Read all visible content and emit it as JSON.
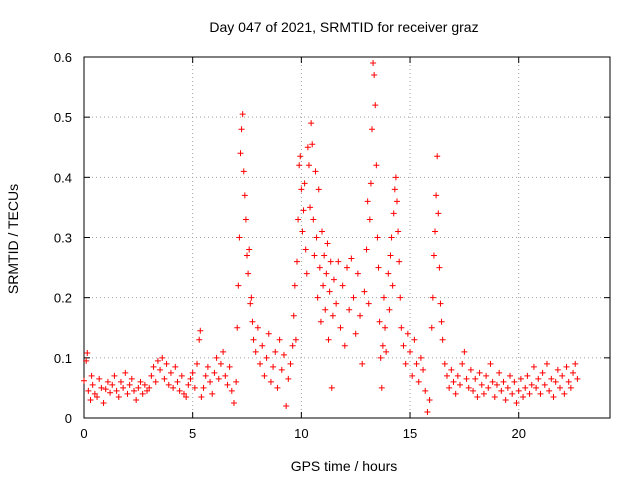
{
  "chart_data": {
    "type": "scatter",
    "title": "Day 047 of 2021, SRMTID for receiver graz",
    "xlabel": "GPS time / hours",
    "ylabel": "SRMTID / TECUs",
    "xlim": [
      0,
      24.2
    ],
    "ylim": [
      0,
      0.6
    ],
    "xticks": [
      0,
      5,
      10,
      15,
      20
    ],
    "yticks": [
      0,
      0.1,
      0.2,
      0.3,
      0.4,
      0.5,
      0.6
    ],
    "grid": true,
    "marker": "plus",
    "series": [
      {
        "name": "SRMTID",
        "color": "#ff0000",
        "points": [
          [
            0.0,
            0.062
          ],
          [
            0.1,
            0.095
          ],
          [
            0.15,
            0.108
          ],
          [
            0.2,
            0.045
          ],
          [
            0.3,
            0.03
          ],
          [
            0.35,
            0.07
          ],
          [
            0.4,
            0.055
          ],
          [
            0.5,
            0.04
          ],
          [
            0.6,
            0.035
          ],
          [
            0.7,
            0.065
          ],
          [
            0.8,
            0.05
          ],
          [
            0.9,
            0.025
          ],
          [
            1.0,
            0.048
          ],
          [
            1.1,
            0.06
          ],
          [
            1.2,
            0.042
          ],
          [
            1.3,
            0.055
          ],
          [
            1.4,
            0.07
          ],
          [
            1.5,
            0.045
          ],
          [
            1.6,
            0.035
          ],
          [
            1.7,
            0.06
          ],
          [
            1.8,
            0.05
          ],
          [
            1.9,
            0.075
          ],
          [
            2.0,
            0.04
          ],
          [
            2.1,
            0.055
          ],
          [
            2.2,
            0.065
          ],
          [
            2.3,
            0.045
          ],
          [
            2.4,
            0.03
          ],
          [
            2.5,
            0.05
          ],
          [
            2.6,
            0.06
          ],
          [
            2.7,
            0.04
          ],
          [
            2.8,
            0.055
          ],
          [
            2.9,
            0.045
          ],
          [
            3.0,
            0.05
          ],
          [
            3.1,
            0.07
          ],
          [
            3.2,
            0.085
          ],
          [
            3.3,
            0.06
          ],
          [
            3.4,
            0.095
          ],
          [
            3.5,
            0.08
          ],
          [
            3.6,
            0.1
          ],
          [
            3.7,
            0.065
          ],
          [
            3.8,
            0.09
          ],
          [
            3.9,
            0.055
          ],
          [
            4.0,
            0.075
          ],
          [
            4.1,
            0.05
          ],
          [
            4.2,
            0.085
          ],
          [
            4.3,
            0.06
          ],
          [
            4.4,
            0.045
          ],
          [
            4.5,
            0.07
          ],
          [
            4.6,
            0.04
          ],
          [
            4.7,
            0.035
          ],
          [
            4.8,
            0.055
          ],
          [
            4.9,
            0.065
          ],
          [
            5.0,
            0.075
          ],
          [
            5.1,
            0.05
          ],
          [
            5.2,
            0.09
          ],
          [
            5.3,
            0.13
          ],
          [
            5.35,
            0.145
          ],
          [
            5.4,
            0.035
          ],
          [
            5.5,
            0.05
          ],
          [
            5.6,
            0.07
          ],
          [
            5.7,
            0.085
          ],
          [
            5.8,
            0.06
          ],
          [
            5.9,
            0.04
          ],
          [
            6.0,
            0.075
          ],
          [
            6.1,
            0.1
          ],
          [
            6.2,
            0.065
          ],
          [
            6.3,
            0.09
          ],
          [
            6.4,
            0.11
          ],
          [
            6.5,
            0.07
          ],
          [
            6.6,
            0.055
          ],
          [
            6.7,
            0.085
          ],
          [
            6.8,
            0.045
          ],
          [
            6.9,
            0.025
          ],
          [
            7.0,
            0.06
          ],
          [
            7.05,
            0.15
          ],
          [
            7.1,
            0.22
          ],
          [
            7.15,
            0.3
          ],
          [
            7.2,
            0.44
          ],
          [
            7.25,
            0.48
          ],
          [
            7.3,
            0.505
          ],
          [
            7.35,
            0.41
          ],
          [
            7.4,
            0.37
          ],
          [
            7.45,
            0.33
          ],
          [
            7.5,
            0.27
          ],
          [
            7.55,
            0.24
          ],
          [
            7.6,
            0.28
          ],
          [
            7.65,
            0.19
          ],
          [
            7.7,
            0.2
          ],
          [
            7.75,
            0.16
          ],
          [
            7.8,
            0.13
          ],
          [
            7.9,
            0.11
          ],
          [
            8.0,
            0.15
          ],
          [
            8.1,
            0.09
          ],
          [
            8.2,
            0.12
          ],
          [
            8.3,
            0.07
          ],
          [
            8.4,
            0.1
          ],
          [
            8.5,
            0.14
          ],
          [
            8.6,
            0.06
          ],
          [
            8.7,
            0.085
          ],
          [
            8.8,
            0.11
          ],
          [
            8.9,
            0.05
          ],
          [
            9.0,
            0.13
          ],
          [
            9.1,
            0.08
          ],
          [
            9.2,
            0.105
          ],
          [
            9.3,
            0.02
          ],
          [
            9.4,
            0.065
          ],
          [
            9.5,
            0.09
          ],
          [
            9.6,
            0.12
          ],
          [
            9.65,
            0.17
          ],
          [
            9.7,
            0.22
          ],
          [
            9.75,
            0.13
          ],
          [
            9.8,
            0.26
          ],
          [
            9.85,
            0.33
          ],
          [
            9.9,
            0.42
          ],
          [
            9.95,
            0.435
          ],
          [
            10.0,
            0.38
          ],
          [
            10.05,
            0.31
          ],
          [
            10.1,
            0.345
          ],
          [
            10.15,
            0.39
          ],
          [
            10.2,
            0.28
          ],
          [
            10.25,
            0.24
          ],
          [
            10.3,
            0.45
          ],
          [
            10.35,
            0.42
          ],
          [
            10.4,
            0.35
          ],
          [
            10.45,
            0.49
          ],
          [
            10.5,
            0.455
          ],
          [
            10.55,
            0.33
          ],
          [
            10.6,
            0.27
          ],
          [
            10.65,
            0.41
          ],
          [
            10.7,
            0.3
          ],
          [
            10.75,
            0.2
          ],
          [
            10.8,
            0.38
          ],
          [
            10.85,
            0.25
          ],
          [
            10.9,
            0.16
          ],
          [
            10.95,
            0.31
          ],
          [
            11.0,
            0.22
          ],
          [
            11.05,
            0.27
          ],
          [
            11.1,
            0.18
          ],
          [
            11.15,
            0.24
          ],
          [
            11.2,
            0.29
          ],
          [
            11.25,
            0.13
          ],
          [
            11.3,
            0.21
          ],
          [
            11.35,
            0.26
          ],
          [
            11.4,
            0.05
          ],
          [
            11.45,
            0.17
          ],
          [
            11.5,
            0.23
          ],
          [
            11.6,
            0.19
          ],
          [
            11.7,
            0.26
          ],
          [
            11.8,
            0.15
          ],
          [
            11.9,
            0.22
          ],
          [
            12.0,
            0.12
          ],
          [
            12.1,
            0.25
          ],
          [
            12.2,
            0.18
          ],
          [
            12.3,
            0.265
          ],
          [
            12.4,
            0.2
          ],
          [
            12.5,
            0.14
          ],
          [
            12.6,
            0.24
          ],
          [
            12.7,
            0.17
          ],
          [
            12.8,
            0.09
          ],
          [
            12.9,
            0.21
          ],
          [
            13.0,
            0.28
          ],
          [
            13.05,
            0.36
          ],
          [
            13.1,
            0.19
          ],
          [
            13.15,
            0.33
          ],
          [
            13.2,
            0.39
          ],
          [
            13.25,
            0.48
          ],
          [
            13.3,
            0.59
          ],
          [
            13.35,
            0.57
          ],
          [
            13.4,
            0.52
          ],
          [
            13.45,
            0.42
          ],
          [
            13.5,
            0.3
          ],
          [
            13.55,
            0.25
          ],
          [
            13.6,
            0.16
          ],
          [
            13.65,
            0.1
          ],
          [
            13.7,
            0.05
          ],
          [
            13.75,
            0.12
          ],
          [
            13.8,
            0.2
          ],
          [
            13.85,
            0.15
          ],
          [
            13.9,
            0.11
          ],
          [
            14.0,
            0.24
          ],
          [
            14.05,
            0.18
          ],
          [
            14.1,
            0.27
          ],
          [
            14.15,
            0.3
          ],
          [
            14.2,
            0.22
          ],
          [
            14.25,
            0.34
          ],
          [
            14.3,
            0.38
          ],
          [
            14.35,
            0.4
          ],
          [
            14.4,
            0.36
          ],
          [
            14.45,
            0.31
          ],
          [
            14.5,
            0.26
          ],
          [
            14.55,
            0.2
          ],
          [
            14.6,
            0.15
          ],
          [
            14.7,
            0.12
          ],
          [
            14.8,
            0.09
          ],
          [
            14.9,
            0.14
          ],
          [
            15.0,
            0.11
          ],
          [
            15.1,
            0.07
          ],
          [
            15.2,
            0.13
          ],
          [
            15.3,
            0.09
          ],
          [
            15.4,
            0.06
          ],
          [
            15.5,
            0.1
          ],
          [
            15.6,
            0.08
          ],
          [
            15.7,
            0.045
          ],
          [
            15.8,
            0.01
          ],
          [
            15.9,
            0.03
          ],
          [
            16.0,
            0.15
          ],
          [
            16.05,
            0.2
          ],
          [
            16.1,
            0.27
          ],
          [
            16.15,
            0.31
          ],
          [
            16.2,
            0.37
          ],
          [
            16.25,
            0.435
          ],
          [
            16.3,
            0.34
          ],
          [
            16.35,
            0.25
          ],
          [
            16.4,
            0.19
          ],
          [
            16.45,
            0.16
          ],
          [
            16.5,
            0.13
          ],
          [
            16.6,
            0.09
          ],
          [
            16.7,
            0.07
          ],
          [
            16.8,
            0.05
          ],
          [
            16.9,
            0.08
          ],
          [
            17.0,
            0.06
          ],
          [
            17.1,
            0.04
          ],
          [
            17.2,
            0.07
          ],
          [
            17.3,
            0.055
          ],
          [
            17.4,
            0.09
          ],
          [
            17.5,
            0.11
          ],
          [
            17.6,
            0.065
          ],
          [
            17.7,
            0.05
          ],
          [
            17.8,
            0.08
          ],
          [
            17.9,
            0.045
          ],
          [
            18.0,
            0.065
          ],
          [
            18.1,
            0.035
          ],
          [
            18.2,
            0.075
          ],
          [
            18.3,
            0.055
          ],
          [
            18.4,
            0.04
          ],
          [
            18.5,
            0.07
          ],
          [
            18.6,
            0.05
          ],
          [
            18.7,
            0.09
          ],
          [
            18.8,
            0.06
          ],
          [
            18.9,
            0.035
          ],
          [
            19.0,
            0.055
          ],
          [
            19.1,
            0.075
          ],
          [
            19.2,
            0.045
          ],
          [
            19.3,
            0.06
          ],
          [
            19.4,
            0.03
          ],
          [
            19.5,
            0.05
          ],
          [
            19.6,
            0.07
          ],
          [
            19.7,
            0.04
          ],
          [
            19.8,
            0.06
          ],
          [
            19.9,
            0.025
          ],
          [
            20.0,
            0.045
          ],
          [
            20.1,
            0.065
          ],
          [
            20.2,
            0.035
          ],
          [
            20.3,
            0.05
          ],
          [
            20.4,
            0.07
          ],
          [
            20.5,
            0.04
          ],
          [
            20.6,
            0.055
          ],
          [
            20.7,
            0.085
          ],
          [
            20.8,
            0.05
          ],
          [
            20.9,
            0.065
          ],
          [
            21.0,
            0.04
          ],
          [
            21.1,
            0.075
          ],
          [
            21.2,
            0.055
          ],
          [
            21.3,
            0.09
          ],
          [
            21.4,
            0.045
          ],
          [
            21.5,
            0.065
          ],
          [
            21.6,
            0.035
          ],
          [
            21.7,
            0.06
          ],
          [
            21.8,
            0.08
          ],
          [
            21.9,
            0.05
          ],
          [
            22.0,
            0.07
          ],
          [
            22.1,
            0.04
          ],
          [
            22.2,
            0.085
          ],
          [
            22.3,
            0.06
          ],
          [
            22.4,
            0.05
          ],
          [
            22.5,
            0.075
          ],
          [
            22.6,
            0.09
          ],
          [
            22.7,
            0.065
          ]
        ]
      }
    ]
  }
}
